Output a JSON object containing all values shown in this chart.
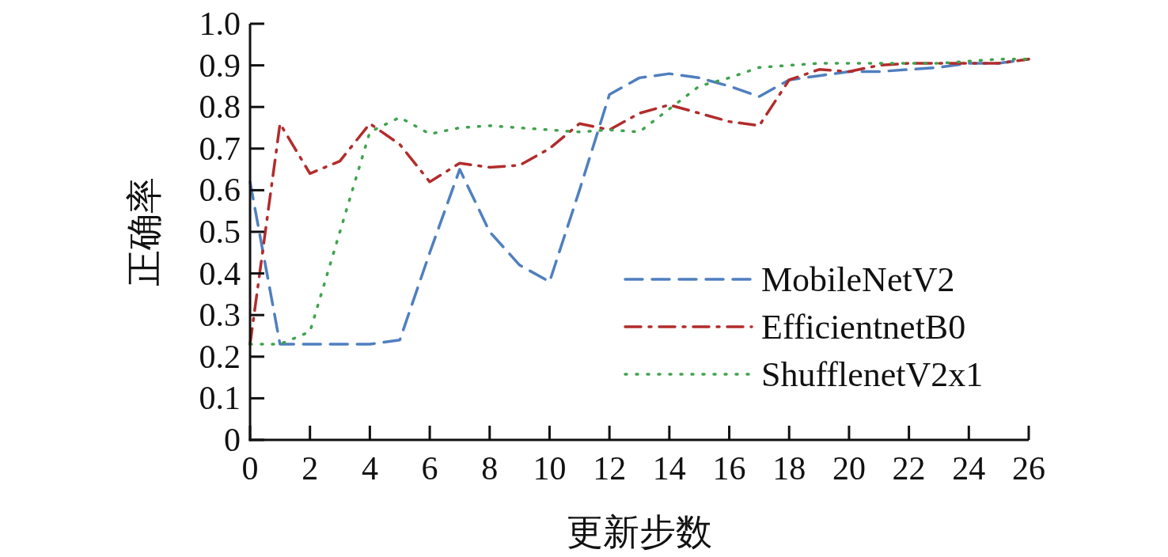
{
  "chart_data": {
    "type": "line",
    "xlabel": "更新步数",
    "ylabel": "正确率",
    "x": [
      0,
      1,
      2,
      3,
      4,
      5,
      6,
      7,
      8,
      9,
      10,
      11,
      12,
      13,
      14,
      15,
      16,
      17,
      18,
      19,
      20,
      21,
      22,
      23,
      24,
      25,
      26
    ],
    "xlim": [
      0,
      26
    ],
    "xticks": [
      0,
      2,
      4,
      6,
      8,
      10,
      12,
      14,
      16,
      18,
      20,
      22,
      24,
      26
    ],
    "ylim": [
      0,
      1.0
    ],
    "yticks": [
      {
        "value": 0,
        "label": "0"
      },
      0.1,
      0.2,
      0.3,
      0.4,
      0.5,
      0.6,
      0.7,
      0.8,
      0.9,
      {
        "value": 1.0,
        "label": "1.0"
      }
    ],
    "grid": false,
    "legend": "right",
    "marker": "none",
    "series": [
      {
        "name": "MobileNetV2",
        "color": "#4f7fbf",
        "line_style": "dashed",
        "values": [
          0.62,
          0.23,
          0.23,
          0.23,
          0.23,
          0.24,
          0.45,
          0.65,
          0.5,
          0.42,
          0.38,
          0.6,
          0.83,
          0.87,
          0.88,
          0.87,
          0.85,
          0.825,
          0.865,
          0.875,
          0.885,
          0.885,
          0.89,
          0.895,
          0.905,
          0.905,
          0.915
        ]
      },
      {
        "name": "EfficientnetB0",
        "color": "#b22c2c",
        "line_style": "dashdot",
        "values": [
          0.23,
          0.76,
          0.64,
          0.67,
          0.76,
          0.71,
          0.62,
          0.665,
          0.655,
          0.66,
          0.7,
          0.76,
          0.745,
          0.785,
          0.805,
          0.785,
          0.765,
          0.755,
          0.865,
          0.89,
          0.885,
          0.9,
          0.905,
          0.905,
          0.905,
          0.905,
          0.915
        ]
      },
      {
        "name": "ShufflenetV2x1",
        "color": "#3fa34d",
        "line_style": "dotted",
        "values": [
          0.23,
          0.23,
          0.26,
          0.5,
          0.74,
          0.775,
          0.735,
          0.75,
          0.755,
          0.75,
          0.745,
          0.74,
          0.745,
          0.74,
          0.795,
          0.85,
          0.87,
          0.895,
          0.9,
          0.905,
          0.905,
          0.905,
          0.905,
          0.905,
          0.91,
          0.915,
          0.915
        ]
      }
    ]
  }
}
